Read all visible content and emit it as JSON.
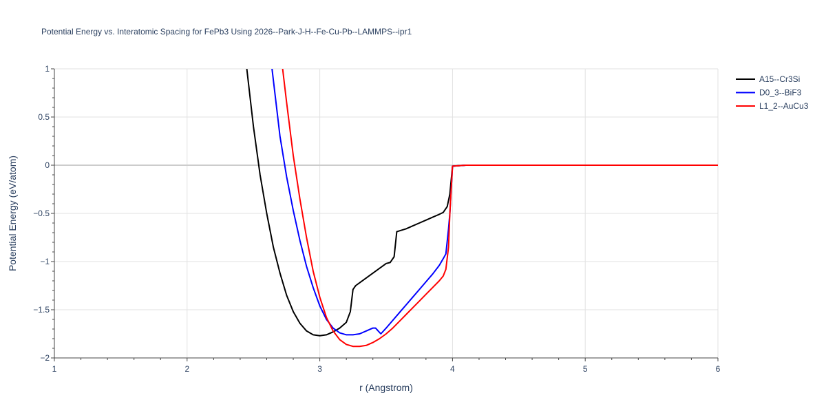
{
  "chart_data": {
    "type": "line",
    "title": "Potential Energy vs. Interatomic Spacing for FePb3 Using 2026--Park-J-H--Fe-Cu-Pb--LAMMPS--ipr1",
    "xlabel": "r (Angstrom)",
    "ylabel": "Potential Energy (eV/atom)",
    "xlim": [
      1,
      6
    ],
    "ylim": [
      -2,
      1
    ],
    "xticks": [
      1,
      2,
      3,
      4,
      5,
      6
    ],
    "xtick_labels": [
      "1",
      "2",
      "3",
      "4",
      "5",
      "6"
    ],
    "yticks": [
      1,
      0.5,
      0,
      -0.5,
      -1,
      -1.5,
      -2
    ],
    "ytick_labels": [
      "1",
      "0.5",
      "0",
      "−0.5",
      "−1",
      "−1.5",
      "−2"
    ],
    "grid": true,
    "legend_position": "top-right",
    "series": [
      {
        "name": "A15--Cr3Si",
        "color": "#000000",
        "x": [
          2.45,
          2.5,
          2.55,
          2.6,
          2.65,
          2.7,
          2.75,
          2.8,
          2.85,
          2.9,
          2.95,
          3.0,
          3.05,
          3.1,
          3.15,
          3.2,
          3.23,
          3.25,
          3.27,
          3.3,
          3.35,
          3.4,
          3.45,
          3.5,
          3.53,
          3.56,
          3.58,
          3.65,
          3.7,
          3.75,
          3.8,
          3.85,
          3.9,
          3.93,
          3.96,
          3.98,
          4.0,
          4.1,
          4.5,
          5.0,
          5.5,
          6.0
        ],
        "y": [
          1.0,
          0.4,
          -0.1,
          -0.5,
          -0.85,
          -1.12,
          -1.35,
          -1.52,
          -1.64,
          -1.72,
          -1.76,
          -1.77,
          -1.76,
          -1.73,
          -1.69,
          -1.63,
          -1.52,
          -1.29,
          -1.25,
          -1.22,
          -1.17,
          -1.12,
          -1.07,
          -1.02,
          -1.01,
          -0.95,
          -0.69,
          -0.66,
          -0.63,
          -0.6,
          -0.57,
          -0.54,
          -0.51,
          -0.49,
          -0.43,
          -0.3,
          -0.01,
          0.0,
          0.0,
          0.0,
          0.0,
          0.0
        ]
      },
      {
        "name": "D0_3--BiF3",
        "color": "#0000ff",
        "x": [
          2.64,
          2.7,
          2.75,
          2.8,
          2.85,
          2.9,
          2.95,
          3.0,
          3.05,
          3.1,
          3.15,
          3.2,
          3.25,
          3.3,
          3.35,
          3.4,
          3.42,
          3.44,
          3.46,
          3.5,
          3.55,
          3.6,
          3.65,
          3.7,
          3.75,
          3.8,
          3.85,
          3.9,
          3.93,
          3.95,
          3.97,
          3.98,
          4.0,
          4.1,
          4.5,
          5.0,
          5.5,
          6.0
        ],
        "y": [
          1.0,
          0.3,
          -0.12,
          -0.47,
          -0.78,
          -1.05,
          -1.27,
          -1.46,
          -1.6,
          -1.69,
          -1.74,
          -1.76,
          -1.76,
          -1.75,
          -1.72,
          -1.69,
          -1.69,
          -1.72,
          -1.75,
          -1.69,
          -1.61,
          -1.53,
          -1.45,
          -1.37,
          -1.29,
          -1.21,
          -1.13,
          -1.04,
          -0.97,
          -0.92,
          -0.66,
          -0.5,
          -0.01,
          0.0,
          0.0,
          0.0,
          0.0,
          0.0
        ]
      },
      {
        "name": "L1_2--AuCu3",
        "color": "#ff0000",
        "x": [
          2.72,
          2.75,
          2.8,
          2.85,
          2.9,
          2.95,
          3.0,
          3.05,
          3.1,
          3.15,
          3.2,
          3.25,
          3.3,
          3.35,
          3.4,
          3.45,
          3.5,
          3.55,
          3.6,
          3.65,
          3.7,
          3.75,
          3.8,
          3.85,
          3.9,
          3.93,
          3.95,
          3.97,
          3.98,
          4.0,
          4.1,
          4.5,
          5.0,
          5.5,
          6.0
        ],
        "y": [
          1.0,
          0.65,
          0.1,
          -0.35,
          -0.75,
          -1.1,
          -1.37,
          -1.58,
          -1.72,
          -1.81,
          -1.86,
          -1.88,
          -1.88,
          -1.87,
          -1.84,
          -1.8,
          -1.75,
          -1.69,
          -1.62,
          -1.55,
          -1.48,
          -1.41,
          -1.34,
          -1.27,
          -1.2,
          -1.15,
          -1.08,
          -0.85,
          -0.5,
          -0.01,
          0.0,
          0.0,
          0.0,
          0.0,
          0.0
        ]
      }
    ]
  }
}
